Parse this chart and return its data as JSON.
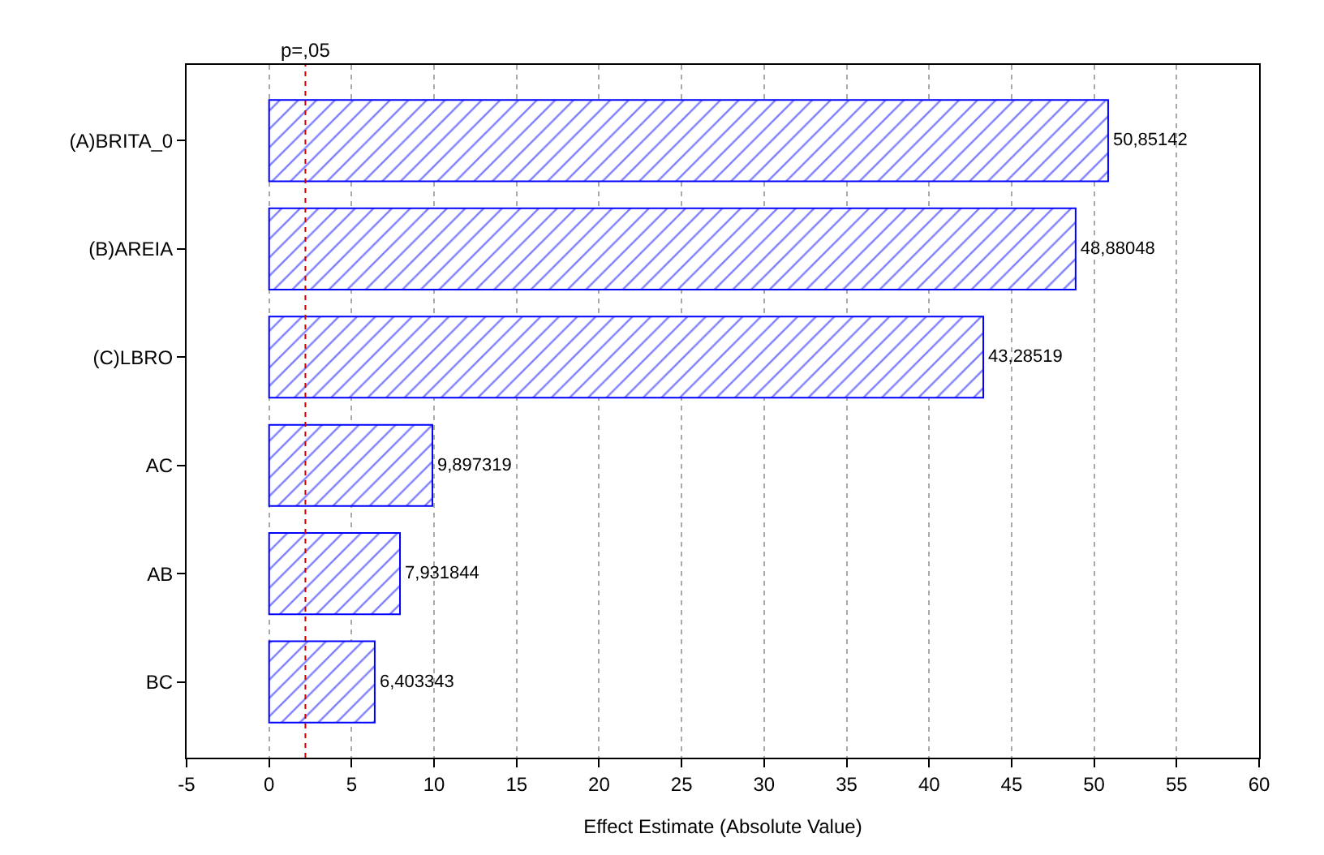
{
  "chart_data": {
    "type": "bar",
    "orientation": "horizontal",
    "xlabel": "Effect Estimate (Absolute Value)",
    "categories": [
      "(A)BRITA_0",
      "(B)AREIA",
      "(C)LBRO",
      "AC",
      "AB",
      "BC"
    ],
    "values": [
      50.85142,
      48.88048,
      43.28519,
      9.897319,
      7.931844,
      6.403343
    ],
    "value_labels": [
      "50,85142",
      "48,88048",
      "43,28519",
      "9,897319",
      "7,931844",
      "6,403343"
    ],
    "color": "#0000ff",
    "xlim": [
      -5,
      60
    ],
    "xticks": [
      -5,
      0,
      5,
      10,
      15,
      20,
      25,
      30,
      35,
      40,
      45,
      50,
      55,
      60
    ],
    "grid": "x",
    "ref_lines": [
      {
        "axis": "x",
        "value": 2.2,
        "label": "p=,05",
        "color": "#cc0000",
        "line_style": "dotted"
      }
    ]
  }
}
